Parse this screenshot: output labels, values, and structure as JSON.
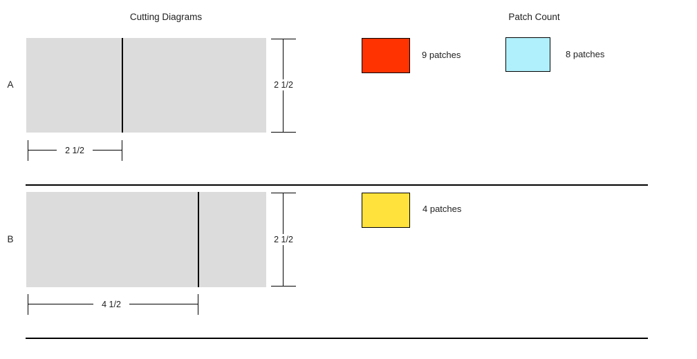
{
  "page": {
    "background": "#ffffff",
    "text_color": "#1e1e1e",
    "line_color": "#000000"
  },
  "titles": {
    "cutting_diagrams": "Cutting Diagrams",
    "patch_count": "Patch Count"
  },
  "diagrams": [
    {
      "label": "A",
      "strip_color": "#dcdcdc",
      "height_label": "2 1/2",
      "cut_width_label": "2 1/2"
    },
    {
      "label": "B",
      "strip_color": "#dcdcdc",
      "height_label": "2 1/2",
      "cut_width_label": "4 1/2"
    }
  ],
  "legend": [
    {
      "swatch_color": "#ff3302",
      "label": "9 patches"
    },
    {
      "swatch_color": "#b0f0fc",
      "label": "8 patches"
    },
    {
      "swatch_color": "#ffe23c",
      "label": "4 patches"
    }
  ]
}
